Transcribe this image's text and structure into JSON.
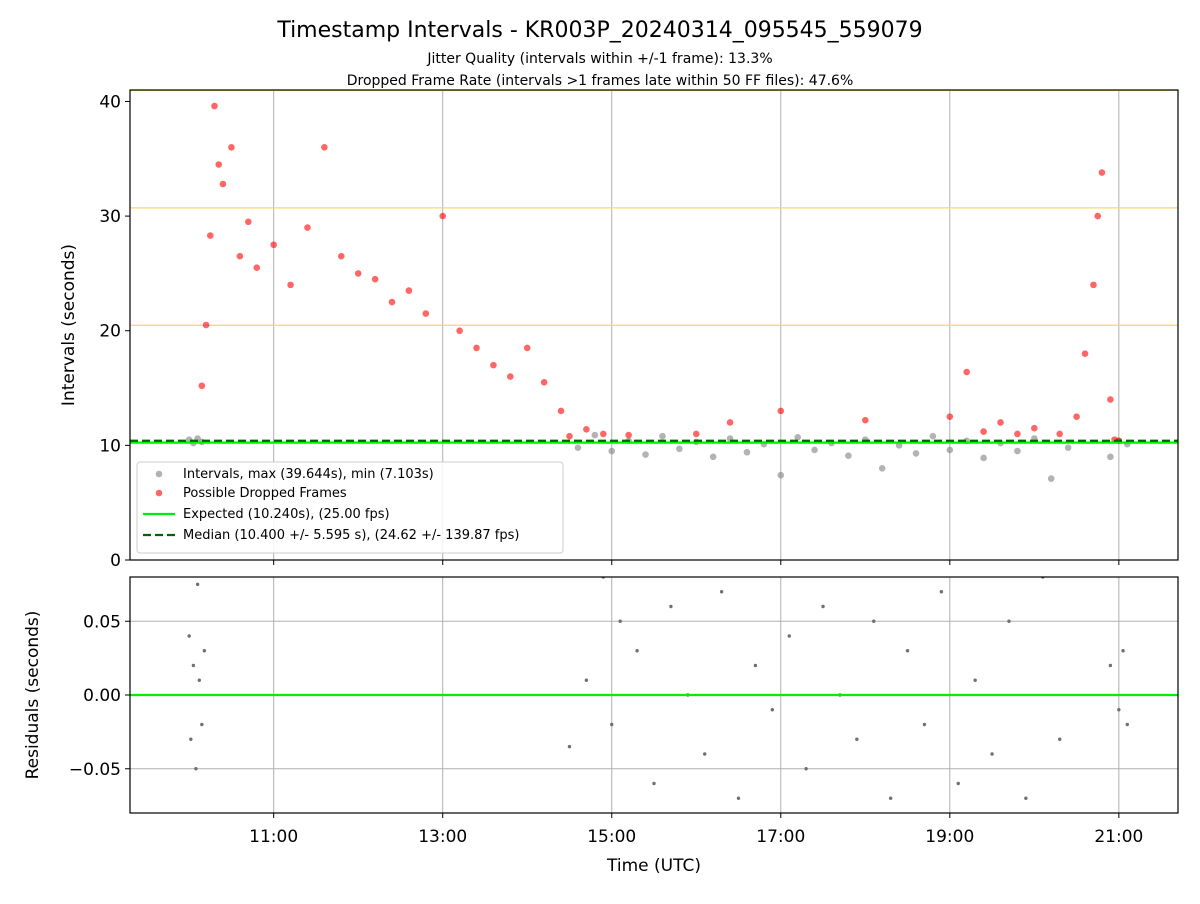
{
  "title": "Timestamp Intervals - KR003P_20240314_095545_559079",
  "subtitle_lines": [
    "Jitter Quality (intervals within +/-1 frame): 13.3%",
    "Dropped Frame Rate (intervals >1 frames late within 50 FF files): 47.6%"
  ],
  "colors": {
    "interval_points": "#808080",
    "dropped_points": "#ff0000",
    "expected_line": "#00ee00",
    "median_line": "#006400",
    "frame_lines": "#ffd36a",
    "grid": "#b0b0b0",
    "residual_points": "#707070"
  },
  "chart_data": [
    {
      "type": "scatter",
      "title": "Timestamp Intervals - KR003P_20240314_095545_559079",
      "xlabel": "",
      "ylabel": "Intervals (seconds)",
      "x_unit": "hours UTC",
      "xlim": [
        9.3,
        21.7
      ],
      "ylim": [
        0,
        41
      ],
      "yticks": [
        0,
        10,
        20,
        30,
        40
      ],
      "grid": true,
      "legend_position": "lower-left",
      "reference_lines": [
        10.24,
        20.48,
        30.72,
        40.96
      ],
      "series": [
        {
          "name": "Intervals, max (39.644s), min (7.103s)",
          "kind": "scatter",
          "points": [
            [
              10.0,
              10.5
            ],
            [
              10.05,
              10.2
            ],
            [
              10.1,
              10.6
            ],
            [
              10.15,
              10.3
            ],
            [
              14.6,
              9.8
            ],
            [
              14.8,
              10.9
            ],
            [
              15.0,
              9.5
            ],
            [
              15.2,
              10.4
            ],
            [
              15.4,
              9.2
            ],
            [
              15.6,
              10.8
            ],
            [
              15.8,
              9.7
            ],
            [
              16.0,
              10.3
            ],
            [
              16.2,
              9.0
            ],
            [
              16.4,
              10.6
            ],
            [
              16.6,
              9.4
            ],
            [
              16.8,
              10.1
            ],
            [
              17.0,
              7.4
            ],
            [
              17.2,
              10.7
            ],
            [
              17.4,
              9.6
            ],
            [
              17.6,
              10.2
            ],
            [
              17.8,
              9.1
            ],
            [
              18.0,
              10.5
            ],
            [
              18.2,
              8.0
            ],
            [
              18.4,
              10.0
            ],
            [
              18.6,
              9.3
            ],
            [
              18.8,
              10.8
            ],
            [
              19.0,
              9.6
            ],
            [
              19.2,
              10.4
            ],
            [
              19.4,
              8.9
            ],
            [
              19.6,
              10.2
            ],
            [
              19.8,
              9.5
            ],
            [
              20.0,
              10.6
            ],
            [
              20.2,
              7.1
            ],
            [
              20.4,
              9.8
            ],
            [
              20.9,
              9.0
            ],
            [
              21.0,
              10.4
            ],
            [
              21.1,
              10.1
            ]
          ]
        },
        {
          "name": "Possible Dropped Frames",
          "kind": "scatter",
          "points": [
            [
              10.15,
              15.2
            ],
            [
              10.2,
              20.5
            ],
            [
              10.25,
              28.3
            ],
            [
              10.3,
              39.6
            ],
            [
              10.35,
              34.5
            ],
            [
              10.4,
              32.8
            ],
            [
              10.5,
              36.0
            ],
            [
              10.6,
              26.5
            ],
            [
              10.7,
              29.5
            ],
            [
              10.8,
              25.5
            ],
            [
              11.0,
              27.5
            ],
            [
              11.2,
              24.0
            ],
            [
              11.4,
              29.0
            ],
            [
              11.6,
              36.0
            ],
            [
              11.8,
              26.5
            ],
            [
              12.0,
              25.0
            ],
            [
              12.2,
              24.5
            ],
            [
              12.4,
              22.5
            ],
            [
              12.6,
              23.5
            ],
            [
              12.8,
              21.5
            ],
            [
              13.0,
              30.0
            ],
            [
              13.2,
              20.0
            ],
            [
              13.4,
              18.5
            ],
            [
              13.6,
              17.0
            ],
            [
              13.8,
              16.0
            ],
            [
              14.0,
              18.5
            ],
            [
              14.2,
              15.5
            ],
            [
              14.4,
              13.0
            ],
            [
              14.5,
              10.8
            ],
            [
              14.7,
              11.4
            ],
            [
              14.9,
              11.0
            ],
            [
              15.2,
              10.9
            ],
            [
              16.0,
              11.0
            ],
            [
              16.4,
              12.0
            ],
            [
              17.0,
              13.0
            ],
            [
              18.0,
              12.2
            ],
            [
              19.0,
              12.5
            ],
            [
              19.2,
              16.4
            ],
            [
              19.4,
              11.2
            ],
            [
              19.6,
              12.0
            ],
            [
              19.8,
              11.0
            ],
            [
              20.0,
              11.5
            ],
            [
              20.3,
              11.0
            ],
            [
              20.5,
              12.5
            ],
            [
              20.6,
              18.0
            ],
            [
              20.7,
              24.0
            ],
            [
              20.75,
              30.0
            ],
            [
              20.8,
              33.8
            ],
            [
              20.9,
              14.0
            ],
            [
              20.95,
              10.5
            ],
            [
              21.0,
              10.4
            ]
          ]
        },
        {
          "name": "Expected (10.240s), (25.00 fps)",
          "kind": "hline",
          "y": 10.24
        },
        {
          "name": "Median (10.400 +/- 5.595 s), (24.62 +/- 139.87 fps)",
          "kind": "hline-dashed",
          "y": 10.4
        }
      ]
    },
    {
      "type": "scatter",
      "title": "",
      "xlabel": "Time (UTC)",
      "ylabel": "Residuals (seconds)",
      "xlim": [
        9.3,
        21.7
      ],
      "ylim": [
        -0.08,
        0.08
      ],
      "yticks": [
        -0.05,
        0.0,
        0.05
      ],
      "ytick_labels": [
        "−0.05",
        "0.00",
        "0.05"
      ],
      "xticks": [
        11,
        13,
        15,
        17,
        19,
        21
      ],
      "xtick_labels": [
        "11:00",
        "13:00",
        "15:00",
        "17:00",
        "19:00",
        "21:00"
      ],
      "grid": true,
      "zero_line": 0.0,
      "points": [
        [
          10.0,
          0.04
        ],
        [
          10.02,
          -0.03
        ],
        [
          10.05,
          0.02
        ],
        [
          10.08,
          -0.05
        ],
        [
          10.1,
          0.075
        ],
        [
          10.12,
          0.01
        ],
        [
          10.15,
          -0.02
        ],
        [
          10.18,
          0.03
        ],
        [
          14.5,
          -0.035
        ],
        [
          14.7,
          0.01
        ],
        [
          14.9,
          0.08
        ],
        [
          15.0,
          -0.02
        ],
        [
          15.1,
          0.05
        ],
        [
          15.3,
          0.03
        ],
        [
          15.5,
          -0.06
        ],
        [
          15.7,
          0.06
        ],
        [
          15.9,
          0.0
        ],
        [
          16.1,
          -0.04
        ],
        [
          16.3,
          0.07
        ],
        [
          16.5,
          -0.07
        ],
        [
          16.7,
          0.02
        ],
        [
          16.9,
          -0.01
        ],
        [
          17.1,
          0.04
        ],
        [
          17.3,
          -0.05
        ],
        [
          17.5,
          0.06
        ],
        [
          17.7,
          0.0
        ],
        [
          17.9,
          -0.03
        ],
        [
          18.1,
          0.05
        ],
        [
          18.3,
          -0.07
        ],
        [
          18.5,
          0.03
        ],
        [
          18.7,
          -0.02
        ],
        [
          18.9,
          0.07
        ],
        [
          19.1,
          -0.06
        ],
        [
          19.3,
          0.01
        ],
        [
          19.5,
          -0.04
        ],
        [
          19.7,
          0.05
        ],
        [
          19.9,
          -0.07
        ],
        [
          20.1,
          0.08
        ],
        [
          20.3,
          -0.03
        ],
        [
          20.9,
          0.02
        ],
        [
          21.0,
          -0.01
        ],
        [
          21.05,
          0.03
        ],
        [
          21.1,
          -0.02
        ]
      ]
    }
  ]
}
